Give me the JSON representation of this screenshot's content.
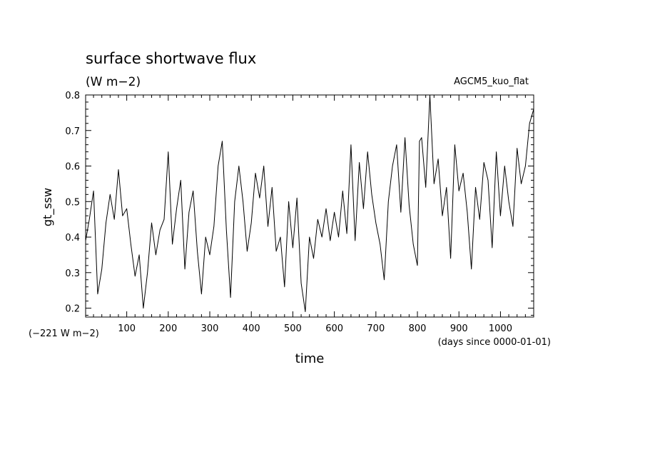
{
  "chart_data": {
    "type": "line",
    "title": "surface shortwave flux",
    "units": "(W m−2)",
    "run_label": "AGCM5_kuo_flat",
    "ylabel": "gt_ssw",
    "xlabel": "time",
    "offset_note": "(−221 W m−2)",
    "x_units_note": "(days since 0000-01-01)",
    "xlim": [
      1,
      1080
    ],
    "ylim": [
      0.175,
      0.8
    ],
    "x_ticks": [
      100,
      200,
      300,
      400,
      500,
      600,
      700,
      800,
      900,
      1000
    ],
    "x_tick_labels": [
      "100",
      "200",
      "300",
      "400",
      "500",
      "600",
      "700",
      "800",
      "900",
      "1000"
    ],
    "y_ticks": [
      0.2,
      0.3,
      0.4,
      0.5,
      0.6,
      0.7,
      0.8
    ],
    "y_tick_labels": [
      "0.2",
      "0.3",
      "0.4",
      "0.5",
      "0.6",
      "0.7",
      "0.8"
    ],
    "grid": false,
    "line_color": "#000000",
    "series": [
      {
        "x": [
          1,
          10,
          20,
          30,
          40,
          50,
          60,
          70,
          80,
          90,
          100,
          110,
          120,
          130,
          140,
          150,
          160,
          170,
          180,
          190,
          200,
          210,
          220,
          230,
          240,
          250,
          260,
          270,
          280,
          290,
          300,
          310,
          320,
          330,
          340,
          350,
          360,
          370,
          380,
          390,
          400,
          410,
          420,
          430,
          440,
          450,
          460,
          470,
          480,
          490,
          500,
          510,
          520,
          530,
          540,
          550,
          560,
          570,
          580,
          590,
          600,
          610,
          620,
          630,
          640,
          650,
          660,
          670,
          680,
          690,
          700,
          710,
          720,
          730,
          740,
          750,
          760,
          770,
          780,
          790,
          800,
          805,
          810,
          820,
          830,
          840,
          850,
          860,
          870,
          880,
          890,
          900,
          910,
          920,
          930,
          940,
          950,
          960,
          970,
          980,
          990,
          1000,
          1010,
          1020,
          1030,
          1040,
          1050,
          1060,
          1070,
          1080
        ],
        "y": [
          0.39,
          0.45,
          0.53,
          0.24,
          0.31,
          0.44,
          0.52,
          0.45,
          0.59,
          0.46,
          0.48,
          0.38,
          0.29,
          0.35,
          0.2,
          0.3,
          0.44,
          0.35,
          0.42,
          0.45,
          0.64,
          0.38,
          0.48,
          0.56,
          0.31,
          0.47,
          0.53,
          0.36,
          0.24,
          0.4,
          0.35,
          0.43,
          0.6,
          0.67,
          0.42,
          0.23,
          0.5,
          0.6,
          0.5,
          0.36,
          0.44,
          0.58,
          0.51,
          0.6,
          0.43,
          0.54,
          0.36,
          0.4,
          0.26,
          0.5,
          0.37,
          0.51,
          0.27,
          0.19,
          0.4,
          0.34,
          0.45,
          0.4,
          0.48,
          0.39,
          0.47,
          0.4,
          0.53,
          0.41,
          0.66,
          0.39,
          0.61,
          0.48,
          0.64,
          0.52,
          0.44,
          0.38,
          0.28,
          0.5,
          0.6,
          0.66,
          0.47,
          0.68,
          0.49,
          0.38,
          0.32,
          0.67,
          0.68,
          0.54,
          0.8,
          0.55,
          0.62,
          0.46,
          0.54,
          0.34,
          0.66,
          0.53,
          0.58,
          0.47,
          0.31,
          0.54,
          0.45,
          0.61,
          0.56,
          0.37,
          0.64,
          0.46,
          0.6,
          0.5,
          0.43,
          0.65,
          0.55,
          0.6,
          0.72,
          0.76
        ]
      }
    ]
  }
}
